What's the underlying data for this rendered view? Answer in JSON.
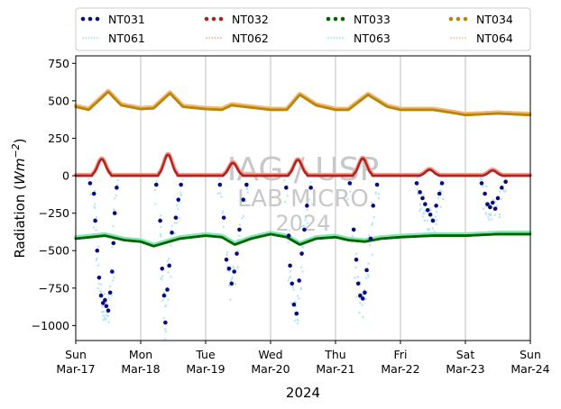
{
  "chart_data": {
    "type": "scatter",
    "xlabel": "2024",
    "ylabel": "Radiation (Wm⁻²)",
    "ylabel_base": "Radiation (",
    "ylabel_unit": "Wm",
    "ylabel_exp": "−2",
    "ylabel_close": ")",
    "ylim": [
      -1100,
      800
    ],
    "yticks": [
      -1000,
      -750,
      -500,
      -250,
      0,
      250,
      500,
      750
    ],
    "xlim": [
      0,
      7
    ],
    "x_unit": "days since Sun Mar-17 2024 00:00",
    "xticks": [
      {
        "x": 0,
        "day": "Sun",
        "date": "Mar-17"
      },
      {
        "x": 1,
        "day": "Mon",
        "date": "Mar-18"
      },
      {
        "x": 2,
        "day": "Tue",
        "date": "Mar-19"
      },
      {
        "x": 3,
        "day": "Wed",
        "date": "Mar-20"
      },
      {
        "x": 4,
        "day": "Thu",
        "date": "Mar-21"
      },
      {
        "x": 5,
        "day": "Fri",
        "date": "Mar-22"
      },
      {
        "x": 6,
        "day": "Sat",
        "date": "Mar-23"
      },
      {
        "x": 7,
        "day": "Sun",
        "date": "Mar-24"
      }
    ],
    "grid": "x",
    "legend_placement": "top, above plot, 4 columns",
    "watermark": [
      "IAG / USP",
      "LAB MICRO",
      "2024"
    ],
    "series": [
      {
        "name": "NT031",
        "color": "#0b0b80",
        "style": "dots",
        "points": [
          [
            0.22,
            -50
          ],
          [
            0.28,
            -120
          ],
          [
            0.3,
            -300
          ],
          [
            0.33,
            -500
          ],
          [
            0.36,
            -680
          ],
          [
            0.39,
            -800
          ],
          [
            0.42,
            -850
          ],
          [
            0.45,
            -830
          ],
          [
            0.47,
            -870
          ],
          [
            0.5,
            -900
          ],
          [
            0.53,
            -780
          ],
          [
            0.56,
            -640
          ],
          [
            0.58,
            -450
          ],
          [
            0.6,
            -250
          ],
          [
            0.63,
            -80
          ],
          [
            1.24,
            -60
          ],
          [
            1.3,
            -300
          ],
          [
            1.33,
            -620
          ],
          [
            1.36,
            -800
          ],
          [
            1.38,
            -980
          ],
          [
            1.41,
            -760
          ],
          [
            1.44,
            -600
          ],
          [
            1.48,
            -380
          ],
          [
            1.54,
            -280
          ],
          [
            1.58,
            -160
          ],
          [
            1.62,
            -60
          ],
          [
            2.22,
            -60
          ],
          [
            2.28,
            -280
          ],
          [
            2.32,
            -560
          ],
          [
            2.36,
            -620
          ],
          [
            2.4,
            -720
          ],
          [
            2.44,
            -640
          ],
          [
            2.48,
            -520
          ],
          [
            2.52,
            -360
          ],
          [
            2.58,
            -160
          ],
          [
            2.63,
            -60
          ],
          [
            3.24,
            -80
          ],
          [
            3.28,
            -400
          ],
          [
            3.3,
            -600
          ],
          [
            3.33,
            -720
          ],
          [
            3.36,
            -860
          ],
          [
            3.4,
            -920
          ],
          [
            3.44,
            -700
          ],
          [
            3.48,
            -520
          ],
          [
            3.52,
            -360
          ],
          [
            3.56,
            -200
          ],
          [
            3.62,
            -80
          ],
          [
            4.22,
            -50
          ],
          [
            4.28,
            -360
          ],
          [
            4.32,
            -560
          ],
          [
            4.35,
            -720
          ],
          [
            4.38,
            -800
          ],
          [
            4.42,
            -820
          ],
          [
            4.45,
            -780
          ],
          [
            4.48,
            -630
          ],
          [
            4.54,
            -420
          ],
          [
            4.58,
            -200
          ],
          [
            4.64,
            -60
          ],
          [
            5.25,
            -50
          ],
          [
            5.3,
            -110
          ],
          [
            5.34,
            -150
          ],
          [
            5.38,
            -190
          ],
          [
            5.42,
            -230
          ],
          [
            5.46,
            -260
          ],
          [
            5.5,
            -300
          ],
          [
            5.55,
            -200
          ],
          [
            5.6,
            -120
          ],
          [
            5.64,
            -50
          ],
          [
            6.25,
            -50
          ],
          [
            6.3,
            -120
          ],
          [
            6.34,
            -190
          ],
          [
            6.38,
            -210
          ],
          [
            6.42,
            -180
          ],
          [
            6.46,
            -220
          ],
          [
            6.5,
            -150
          ],
          [
            6.56,
            -80
          ],
          [
            6.62,
            -40
          ]
        ]
      },
      {
        "name": "NT032",
        "color": "#b22222",
        "style": "dots",
        "baseline": 0,
        "humps": [
          [
            0.4,
            110
          ],
          [
            1.42,
            140
          ],
          [
            2.42,
            85
          ],
          [
            3.42,
            105
          ],
          [
            4.42,
            115
          ],
          [
            5.45,
            40
          ],
          [
            6.42,
            35
          ]
        ]
      },
      {
        "name": "NT033",
        "color": "#006400",
        "style": "dots",
        "line": [
          [
            0,
            -420
          ],
          [
            0.45,
            -400
          ],
          [
            0.75,
            -430
          ],
          [
            1.0,
            -440
          ],
          [
            1.2,
            -470
          ],
          [
            1.6,
            -420
          ],
          [
            2.0,
            -400
          ],
          [
            2.25,
            -410
          ],
          [
            2.45,
            -460
          ],
          [
            2.7,
            -420
          ],
          [
            3.0,
            -390
          ],
          [
            3.25,
            -410
          ],
          [
            3.45,
            -460
          ],
          [
            3.7,
            -420
          ],
          [
            4.0,
            -410
          ],
          [
            4.2,
            -430
          ],
          [
            4.45,
            -440
          ],
          [
            4.7,
            -420
          ],
          [
            5.0,
            -410
          ],
          [
            5.5,
            -400
          ],
          [
            6.0,
            -400
          ],
          [
            6.5,
            -390
          ],
          [
            7.0,
            -390
          ]
        ]
      },
      {
        "name": "NT034",
        "color": "#b8860b",
        "style": "dots",
        "line": [
          [
            0,
            460
          ],
          [
            0.2,
            440
          ],
          [
            0.5,
            560
          ],
          [
            0.7,
            470
          ],
          [
            1.0,
            445
          ],
          [
            1.2,
            450
          ],
          [
            1.45,
            550
          ],
          [
            1.65,
            460
          ],
          [
            2.0,
            445
          ],
          [
            2.25,
            440
          ],
          [
            2.4,
            470
          ],
          [
            2.6,
            460
          ],
          [
            3.0,
            440
          ],
          [
            3.25,
            440
          ],
          [
            3.45,
            540
          ],
          [
            3.7,
            470
          ],
          [
            4.0,
            440
          ],
          [
            4.2,
            440
          ],
          [
            4.5,
            540
          ],
          [
            4.8,
            460
          ],
          [
            5.0,
            440
          ],
          [
            5.5,
            440
          ],
          [
            5.8,
            420
          ],
          [
            6.0,
            405
          ],
          [
            6.5,
            415
          ],
          [
            7.0,
            405
          ]
        ]
      },
      {
        "name": "NT061",
        "color": "#b0e8f5",
        "style": "dotted"
      },
      {
        "name": "NT062",
        "color": "#f0b8b0",
        "style": "dotted"
      },
      {
        "name": "NT063",
        "color": "#a8e8e8",
        "style": "dotted"
      },
      {
        "name": "NT064",
        "color": "#f0c8a0",
        "style": "dotted"
      }
    ]
  }
}
